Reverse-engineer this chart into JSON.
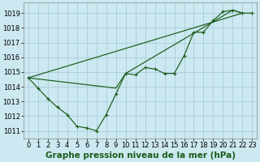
{
  "background_color": "#cce8f0",
  "grid_color": "#aaccd8",
  "line_color": "#1a5c1a",
  "xlabel": "Graphe pression niveau de la mer (hPa)",
  "xlim": [
    -0.5,
    23.5
  ],
  "ylim": [
    1010.5,
    1019.7
  ],
  "yticks": [
    1011,
    1012,
    1013,
    1014,
    1015,
    1016,
    1017,
    1018,
    1019
  ],
  "xticks": [
    0,
    1,
    2,
    3,
    4,
    5,
    6,
    7,
    8,
    9,
    10,
    11,
    12,
    13,
    14,
    15,
    16,
    17,
    18,
    19,
    20,
    21,
    22,
    23
  ],
  "main_x": [
    0,
    1,
    2,
    3,
    4,
    5,
    6,
    7,
    8,
    9,
    10,
    11,
    12,
    13,
    14,
    15,
    16,
    17,
    18,
    19,
    20,
    21,
    22,
    23
  ],
  "main_y": [
    1014.6,
    1013.9,
    1013.2,
    1012.6,
    1012.1,
    1011.3,
    1011.2,
    1011.0,
    1012.1,
    1013.5,
    1014.9,
    1014.8,
    1015.3,
    1015.2,
    1014.9,
    1014.9,
    1016.1,
    1017.7,
    1017.7,
    1018.5,
    1019.1,
    1019.2,
    1019.0,
    1019.0
  ],
  "trend1_x": [
    0,
    22
  ],
  "trend1_y": [
    1014.6,
    1019.0
  ],
  "trend2_x": [
    0,
    9,
    10,
    21,
    22
  ],
  "trend2_y": [
    1014.6,
    1013.9,
    1014.9,
    1019.2,
    1019.0
  ],
  "ylabel_fontsize": 6.5,
  "xlabel_fontsize": 7.5,
  "tick_fontsize": 6.0
}
